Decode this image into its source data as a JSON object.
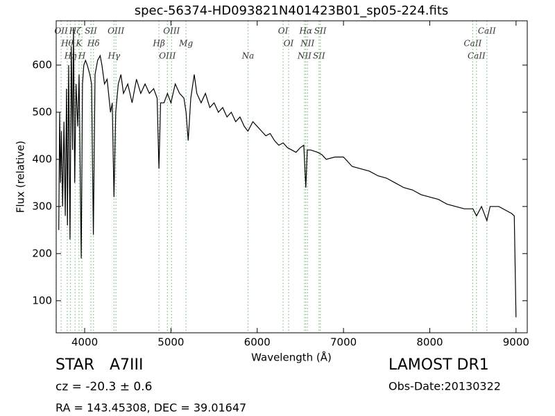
{
  "chart_data": {
    "type": "line",
    "title": "spec-56374-HD093821N401423B01_sp05-224.fits",
    "xlabel": "Wavelength (Å)",
    "ylabel": "Flux (relative)",
    "color": "#000000",
    "x": [
      3700,
      3710,
      3720,
      3730,
      3745,
      3760,
      3775,
      3790,
      3800,
      3815,
      3830,
      3845,
      3860,
      3870,
      3885,
      3900,
      3920,
      3935,
      3950,
      3960,
      3975,
      3990,
      4010,
      4030,
      4060,
      4080,
      4101,
      4120,
      4150,
      4180,
      4200,
      4230,
      4260,
      4300,
      4320,
      4340,
      4360,
      4390,
      4420,
      4450,
      4500,
      4550,
      4600,
      4650,
      4700,
      4750,
      4800,
      4840,
      4861,
      4880,
      4920,
      4960,
      5000,
      5050,
      5100,
      5150,
      5175,
      5200,
      5230,
      5270,
      5300,
      5350,
      5400,
      5450,
      5500,
      5550,
      5600,
      5650,
      5700,
      5750,
      5800,
      5850,
      5893,
      5950,
      6000,
      6050,
      6100,
      6150,
      6200,
      6250,
      6300,
      6350,
      6400,
      6450,
      6500,
      6540,
      6563,
      6580,
      6620,
      6700,
      6750,
      6800,
      6900,
      7000,
      7100,
      7200,
      7300,
      7400,
      7500,
      7600,
      7700,
      7800,
      7900,
      8000,
      8100,
      8200,
      8300,
      8400,
      8500,
      8542,
      8600,
      8662,
      8700,
      8800,
      8900,
      8950,
      8980,
      9000
    ],
    "values": [
      250,
      500,
      350,
      460,
      300,
      480,
      280,
      550,
      260,
      600,
      230,
      640,
      420,
      680,
      350,
      560,
      470,
      580,
      350,
      190,
      560,
      600,
      610,
      600,
      580,
      560,
      240,
      580,
      610,
      620,
      600,
      560,
      570,
      500,
      520,
      320,
      500,
      560,
      580,
      540,
      560,
      520,
      570,
      540,
      560,
      540,
      550,
      530,
      380,
      520,
      520,
      540,
      520,
      560,
      540,
      530,
      500,
      440,
      530,
      580,
      540,
      520,
      540,
      510,
      520,
      500,
      510,
      490,
      500,
      480,
      490,
      470,
      460,
      480,
      470,
      460,
      450,
      455,
      440,
      430,
      435,
      425,
      420,
      415,
      425,
      430,
      340,
      420,
      420,
      415,
      410,
      400,
      405,
      405,
      385,
      380,
      375,
      365,
      360,
      350,
      340,
      335,
      325,
      320,
      315,
      305,
      300,
      295,
      295,
      280,
      300,
      270,
      300,
      300,
      290,
      285,
      280,
      65
    ],
    "xlim": [
      3670,
      9130
    ],
    "ylim": [
      32,
      694
    ],
    "xticks": [
      4000,
      5000,
      6000,
      7000,
      8000,
      9000
    ],
    "yticks": [
      100,
      200,
      300,
      400,
      500,
      600
    ],
    "line_color": "#7fbf7f",
    "lines": [
      {
        "label": "OII",
        "x": 3727
      },
      {
        "label": "Hθ",
        "x": 3798
      },
      {
        "label": "Hη",
        "x": 3835
      },
      {
        "label": "Hζ",
        "x": 3889
      },
      {
        "label": "K",
        "x": 3934
      },
      {
        "label": "H",
        "x": 3968
      },
      {
        "label": "SII",
        "x": 4072
      },
      {
        "label": "Hδ",
        "x": 4102
      },
      {
        "label": "Hγ",
        "x": 4340
      },
      {
        "label": "OIII",
        "x": 4363
      },
      {
        "label": "Hβ",
        "x": 4861
      },
      {
        "label": "OIII",
        "x": 4959
      },
      {
        "label": "OIII",
        "x": 5007
      },
      {
        "label": "Mg",
        "x": 5175
      },
      {
        "label": "Na",
        "x": 5893
      },
      {
        "label": "OI",
        "x": 6300
      },
      {
        "label": "OI",
        "x": 6364
      },
      {
        "label": "NII",
        "x": 6548
      },
      {
        "label": "Hα",
        "x": 6563
      },
      {
        "label": "NII",
        "x": 6583
      },
      {
        "label": "SII",
        "x": 6716
      },
      {
        "label": "SII",
        "x": 6731
      },
      {
        "label": "CaII",
        "x": 8498
      },
      {
        "label": "CaII",
        "x": 8542
      },
      {
        "label": "CaII",
        "x": 8662
      }
    ]
  },
  "info": {
    "class": "STAR",
    "subclass": "A7III",
    "survey": "LAMOST DR1",
    "cz": "cz = -20.3 ± 0.6",
    "obs_date": "Obs-Date:20130322",
    "coords": "RA = 143.45308, DEC = 39.01647"
  }
}
